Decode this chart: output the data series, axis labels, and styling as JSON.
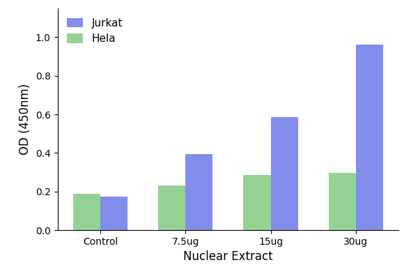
{
  "categories": [
    "Control",
    "7.5ug",
    "15ug",
    "30ug"
  ],
  "jurkat_values": [
    0.175,
    0.395,
    0.585,
    0.96
  ],
  "hela_values": [
    0.19,
    0.23,
    0.285,
    0.295
  ],
  "jurkat_color": "#6674e8",
  "hela_color": "#7dc87d",
  "jurkat_label": "Jurkat",
  "hela_label": "Hela",
  "xlabel": "Nuclear Extract",
  "ylabel": "OD (450nm)",
  "ylim": [
    0,
    1.15
  ],
  "yticks": [
    0.0,
    0.2,
    0.4,
    0.6,
    0.8,
    1.0
  ],
  "bar_width": 0.32,
  "legend_fontsize": 11,
  "axis_fontsize": 12,
  "tick_fontsize": 10,
  "background_color": "#ffffff"
}
